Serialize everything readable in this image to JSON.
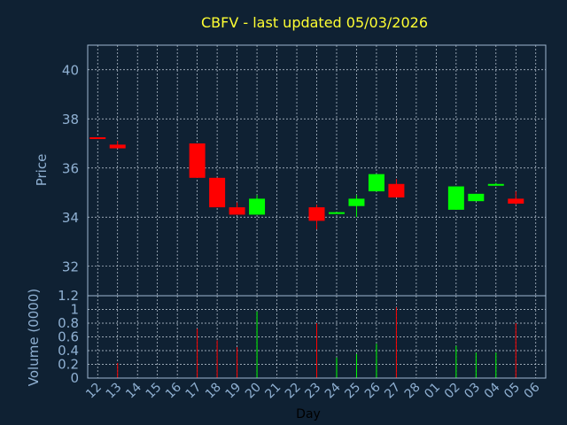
{
  "title": "CBFV - last updated 05/03/2026",
  "colors": {
    "background": "#0f2133",
    "title": "#ffff33",
    "axis_text": "#8fb0d2",
    "frame": "#9fb8d0",
    "grid": "#c8d4e0",
    "up": "#00ff00",
    "down": "#ff0000",
    "day_label": "#000000"
  },
  "chart_data": [
    {
      "type": "candlestick",
      "ylabel": "Price",
      "ylim": [
        30.8,
        41
      ],
      "yticks": [
        32,
        34,
        36,
        38,
        40
      ],
      "grid": true,
      "x": [
        "12",
        "13",
        "14",
        "15",
        "16",
        "17",
        "18",
        "19",
        "20",
        "21",
        "22",
        "23",
        "24",
        "25",
        "26",
        "27",
        "28",
        "01",
        "02",
        "03",
        "04",
        "05",
        "06"
      ],
      "candles": [
        {
          "day": "12",
          "open": 37.25,
          "close": 37.2,
          "high": 37.25,
          "low": 37.2
        },
        {
          "day": "13",
          "open": 36.95,
          "close": 36.8,
          "high": 37.1,
          "low": 36.8
        },
        {
          "day": "17",
          "open": 37.0,
          "close": 35.6,
          "high": 37.0,
          "low": 35.6
        },
        {
          "day": "18",
          "open": 35.6,
          "close": 34.4,
          "high": 35.6,
          "low": 34.4
        },
        {
          "day": "19",
          "open": 34.4,
          "close": 34.1,
          "high": 34.6,
          "low": 34.1
        },
        {
          "day": "20",
          "open": 34.1,
          "close": 34.75,
          "high": 34.9,
          "low": 34.1
        },
        {
          "day": "23",
          "open": 34.4,
          "close": 33.85,
          "high": 34.5,
          "low": 33.5
        },
        {
          "day": "24",
          "open": 34.15,
          "close": 34.2,
          "high": 34.2,
          "low": 34.15
        },
        {
          "day": "25",
          "open": 34.45,
          "close": 34.75,
          "high": 34.9,
          "low": 34.0
        },
        {
          "day": "26",
          "open": 35.05,
          "close": 35.75,
          "high": 35.75,
          "low": 35.05
        },
        {
          "day": "27",
          "open": 35.35,
          "close": 34.8,
          "high": 35.55,
          "low": 34.8
        },
        {
          "day": "02",
          "open": 34.3,
          "close": 35.25,
          "high": 35.25,
          "low": 34.3
        },
        {
          "day": "03",
          "open": 34.65,
          "close": 34.95,
          "high": 34.95,
          "low": 34.65
        },
        {
          "day": "04",
          "open": 35.3,
          "close": 35.35,
          "high": 35.4,
          "low": 35.3
        },
        {
          "day": "05",
          "open": 34.75,
          "close": 34.55,
          "high": 35.05,
          "low": 34.5
        }
      ]
    },
    {
      "type": "bar",
      "ylabel": "Volume (0000)",
      "xlabel": "Day",
      "ylim": [
        0,
        1.2
      ],
      "yticks": [
        0,
        0.2,
        0.4,
        0.6,
        0.8,
        1,
        1.2
      ],
      "ytick_labels": [
        "0",
        "0.2",
        "0.4",
        "0.6",
        "0.8",
        "1",
        "1.2"
      ],
      "grid": true,
      "x": [
        "12",
        "13",
        "14",
        "15",
        "16",
        "17",
        "18",
        "19",
        "20",
        "21",
        "22",
        "23",
        "24",
        "25",
        "26",
        "27",
        "28",
        "01",
        "02",
        "03",
        "04",
        "05",
        "06"
      ],
      "bars": [
        {
          "day": "13",
          "value": 0.22,
          "direction": "down"
        },
        {
          "day": "17",
          "value": 0.72,
          "direction": "down"
        },
        {
          "day": "18",
          "value": 0.55,
          "direction": "down"
        },
        {
          "day": "19",
          "value": 0.45,
          "direction": "down"
        },
        {
          "day": "20",
          "value": 0.97,
          "direction": "up"
        },
        {
          "day": "23",
          "value": 0.8,
          "direction": "down"
        },
        {
          "day": "24",
          "value": 0.3,
          "direction": "up"
        },
        {
          "day": "25",
          "value": 0.35,
          "direction": "up"
        },
        {
          "day": "26",
          "value": 0.5,
          "direction": "up"
        },
        {
          "day": "27",
          "value": 1.03,
          "direction": "down"
        },
        {
          "day": "02",
          "value": 0.47,
          "direction": "up"
        },
        {
          "day": "03",
          "value": 0.37,
          "direction": "up"
        },
        {
          "day": "04",
          "value": 0.37,
          "direction": "up"
        },
        {
          "day": "05",
          "value": 0.8,
          "direction": "down"
        }
      ]
    }
  ]
}
